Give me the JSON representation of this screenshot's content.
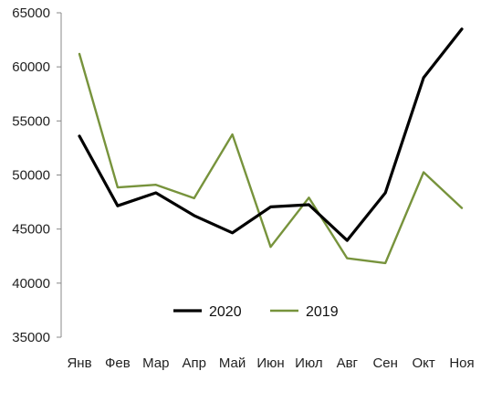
{
  "chart_data": {
    "type": "line",
    "title": "",
    "xlabel": "",
    "ylabel": "",
    "categories": [
      "Янв",
      "Фев",
      "Мар",
      "Апр",
      "Май",
      "Июн",
      "Июл",
      "Авг",
      "Сен",
      "Окт",
      "Ноя"
    ],
    "ylim": [
      35000,
      65000
    ],
    "yticks": [
      "35000",
      "40000",
      "45000",
      "50000",
      "55000",
      "60000",
      "65000"
    ],
    "grid": false,
    "legend_position": "bottom-center",
    "series": [
      {
        "name": "2020",
        "color": "#000000",
        "values": [
          53600,
          47150,
          48350,
          46250,
          44650,
          47050,
          47250,
          43950,
          48350,
          59000,
          63500
        ]
      },
      {
        "name": "2019",
        "color": "#77933C",
        "values": [
          61200,
          48850,
          49100,
          47850,
          53750,
          43350,
          47900,
          42300,
          41850,
          50250,
          46950
        ]
      }
    ]
  }
}
